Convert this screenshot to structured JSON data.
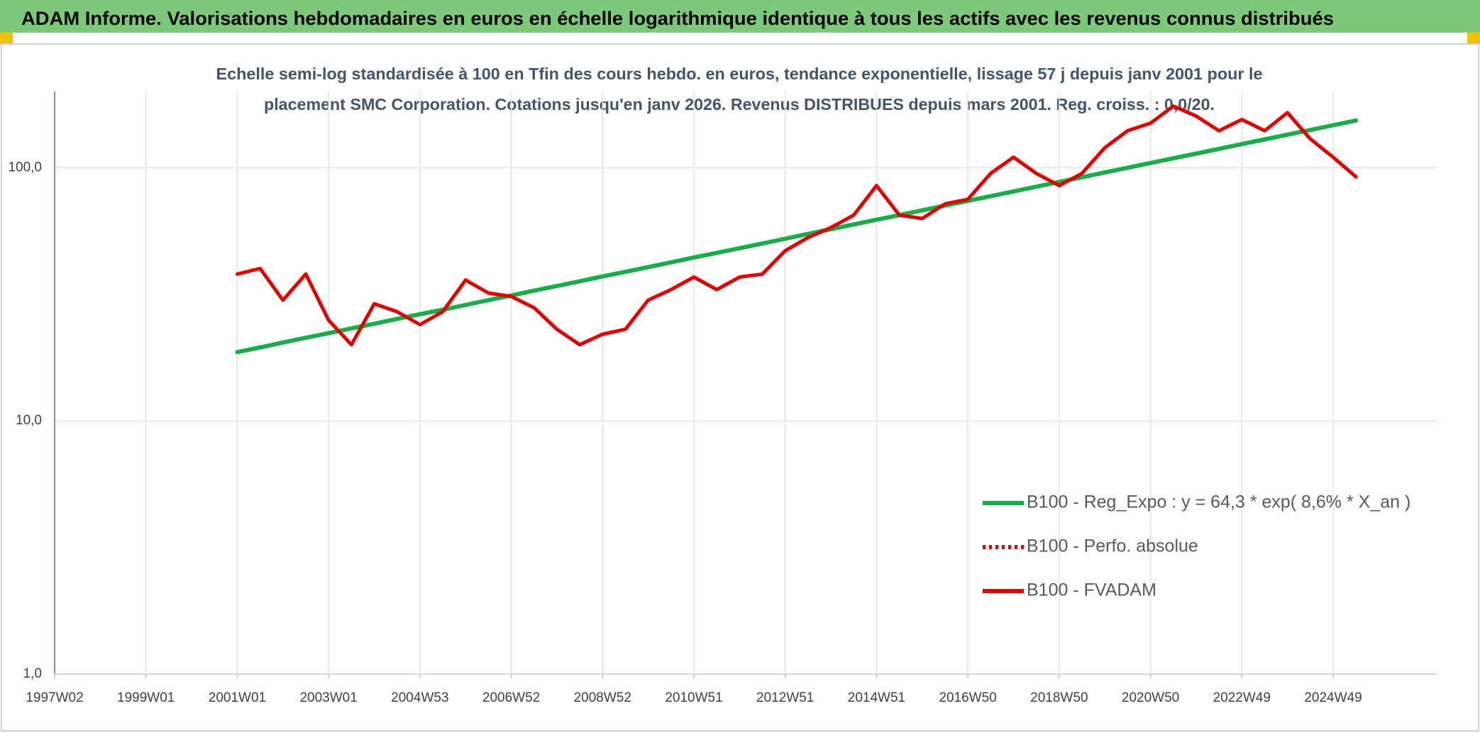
{
  "chart_data": {
    "type": "line",
    "title": "ADAM Informe. Valorisations hebdomadaires en euros en échelle logarithmique identique à tous les actifs avec les revenus connus distribués",
    "subtitle": [
      "Echelle semi-log standardisée à 100 en Tfin des cours hebdo. en euros, tendance exponentielle, lissage 57 j depuis janv 2001 pour le",
      "placement SMC Corporation. Cotations jusqu'en janv 2026. Revenus DISTRIBUES depuis mars 2001. Reg. croiss. : 0,0/20."
    ],
    "categories": [
      "1997W02",
      null,
      null,
      null,
      "1999W01",
      null,
      null,
      null,
      "2001W01",
      null,
      null,
      null,
      "2003W01",
      null,
      null,
      null,
      "2004W53",
      null,
      null,
      null,
      "2006W52",
      null,
      null,
      null,
      "2008W52",
      null,
      null,
      null,
      "2010W51",
      null,
      null,
      null,
      "2012W51",
      null,
      null,
      null,
      "2014W51",
      null,
      null,
      null,
      "2016W50",
      null,
      null,
      null,
      "2018W50",
      null,
      null,
      null,
      "2020W50",
      null,
      null,
      null,
      "2022W49",
      null,
      null,
      null,
      "2024W49",
      null
    ],
    "log_scale": true,
    "ylim": [
      1,
      200
    ],
    "yticks": [
      {
        "value": 1,
        "label": "1,0"
      },
      {
        "value": 10,
        "label": "10,0"
      },
      {
        "value": 100,
        "label": "100,0"
      }
    ],
    "grid": true,
    "legend": "lower right",
    "series": [
      {
        "name": "B100 - Reg_Expo : y = 64,3 * exp( 8,6% *  X_an )",
        "color": "#1aab4a",
        "style": "solid",
        "values": [
          null,
          null,
          null,
          null,
          null,
          null,
          null,
          null,
          18.7,
          19.5,
          20.4,
          21.3,
          22.2,
          23.2,
          24.2,
          25.3,
          26.4,
          27.5,
          28.7,
          30.0,
          31.3,
          32.7,
          34.1,
          35.6,
          37.2,
          38.8,
          40.5,
          42.3,
          44.2,
          46.1,
          48.1,
          50.2,
          52.4,
          54.8,
          57.2,
          59.7,
          62.3,
          65.0,
          67.9,
          70.9,
          74.0,
          77.2,
          80.6,
          84.2,
          87.9,
          91.7,
          95.8,
          100.0,
          104.4,
          109.0,
          113.7,
          118.7,
          124.0,
          129.4,
          135.1,
          141.0,
          147.2,
          153.7
        ]
      },
      {
        "name": "B100 - Perfo. absolue",
        "color": "#e00000",
        "style": "dotted",
        "values": [
          null,
          null,
          null,
          null,
          null,
          null,
          null,
          null,
          null,
          null,
          null,
          null,
          null,
          null,
          null,
          null,
          null,
          null,
          null,
          null,
          null,
          null,
          null,
          null,
          null,
          null,
          null,
          null,
          null,
          null,
          null,
          null,
          null,
          null,
          null,
          null,
          null,
          null,
          null,
          null,
          null,
          null,
          null,
          null,
          null,
          null,
          null,
          null,
          null,
          null,
          null,
          null,
          null,
          null,
          null,
          null,
          null,
          null
        ]
      },
      {
        "name": "B100 - FVADAM",
        "color": "#e00000",
        "style": "solid",
        "values": [
          null,
          null,
          null,
          null,
          null,
          null,
          null,
          null,
          38,
          40,
          30,
          38,
          25,
          20,
          29,
          27,
          24,
          27,
          36,
          32,
          31,
          28,
          23,
          20,
          22,
          23,
          30,
          33,
          37,
          33,
          37,
          38,
          47,
          53,
          58,
          65,
          85,
          65,
          63,
          72,
          75,
          95,
          110,
          95,
          85,
          95,
          120,
          140,
          150,
          175,
          160,
          140,
          155,
          140,
          165,
          130,
          110,
          92
        ]
      }
    ]
  }
}
